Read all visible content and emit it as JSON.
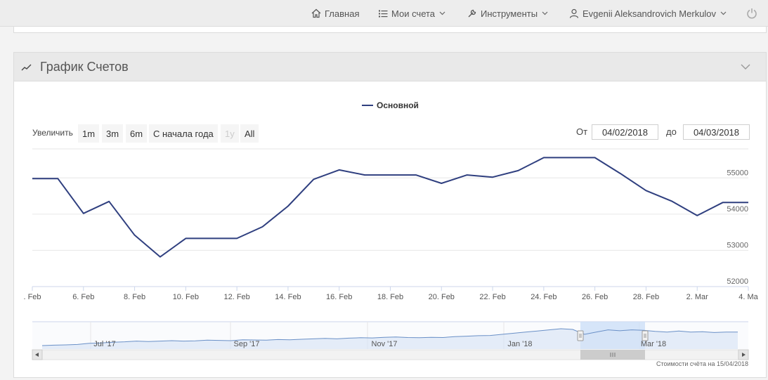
{
  "nav": {
    "home": "Главная",
    "accounts": "Мои счета",
    "tools": "Инструменты",
    "user": "Evgenii Aleksandrovich Merkulov"
  },
  "panel": {
    "title": "График Счетов"
  },
  "controls": {
    "zoom_label": "Увеличить",
    "buttons": [
      "1m",
      "3m",
      "6m",
      "С начала года",
      "1y",
      "All"
    ],
    "from_label": "От",
    "from_value": "04/02/2018",
    "to_label": "до",
    "to_value": "04/03/2018"
  },
  "footer": {
    "note": "Стоимости счёта на 15/04/2018"
  },
  "colors": {
    "series": "#2f3f7f",
    "navigator_selection": "#cde0f7"
  },
  "chart_data": {
    "type": "line",
    "title": "",
    "xlabel": "",
    "ylabel": "",
    "ylim": [
      52000,
      55800
    ],
    "series": [
      {
        "name": "Основной",
        "x": [
          "4 Feb",
          "5 Feb",
          "6 Feb",
          "7 Feb",
          "8 Feb",
          "9 Feb",
          "10 Feb",
          "11 Feb",
          "12 Feb",
          "13 Feb",
          "14 Feb",
          "15 Feb",
          "16 Feb",
          "17 Feb",
          "18 Feb",
          "19 Feb",
          "20 Feb",
          "21 Feb",
          "22 Feb",
          "23 Feb",
          "24 Feb",
          "25 Feb",
          "26 Feb",
          "27 Feb",
          "28 Feb",
          "1 Mar",
          "2 Mar",
          "3 Mar",
          "4 Mar"
        ],
        "values": [
          54980,
          54980,
          54020,
          54350,
          53420,
          52820,
          53330,
          53330,
          53330,
          53650,
          54220,
          54960,
          55220,
          55080,
          55080,
          55080,
          54850,
          55080,
          55020,
          55200,
          55560,
          55560,
          55560,
          55120,
          54650,
          54360,
          53960,
          54320,
          54320
        ]
      }
    ],
    "y_ticks": [
      "55000",
      "54000",
      "53000",
      "52000"
    ],
    "x_ticks": [
      ". Feb",
      "6. Feb",
      "8. Feb",
      "10. Feb",
      "12. Feb",
      "14. Feb",
      "16. Feb",
      "18. Feb",
      "20. Feb",
      "22. Feb",
      "24. Feb",
      "26. Feb",
      "28. Feb",
      "2. Mar",
      "4. Ma"
    ],
    "navigator_ticks": [
      "Jul '17",
      "Sep '17",
      "Nov '17",
      "Jan '18",
      "Mar '18"
    ],
    "navigator_series": [
      0.0,
      0.02,
      0.03,
      0.05,
      0.1,
      0.12,
      0.15,
      0.17,
      0.2,
      0.18,
      0.2,
      0.22,
      0.2,
      0.21,
      0.24,
      0.23,
      0.22,
      0.26,
      0.25,
      0.24,
      0.27,
      0.26,
      0.28,
      0.3,
      0.32,
      0.3,
      0.33,
      0.35,
      0.34,
      0.37,
      0.38,
      0.36,
      0.35,
      0.37,
      0.36,
      0.4,
      0.42,
      0.44,
      0.45,
      0.5,
      0.55,
      0.6,
      0.65,
      0.7,
      0.75,
      0.72,
      0.5,
      0.6,
      0.7,
      0.66,
      0.7,
      0.68,
      0.63,
      0.6,
      0.65,
      0.6,
      0.62,
      0.58,
      0.6,
      0.6
    ]
  }
}
